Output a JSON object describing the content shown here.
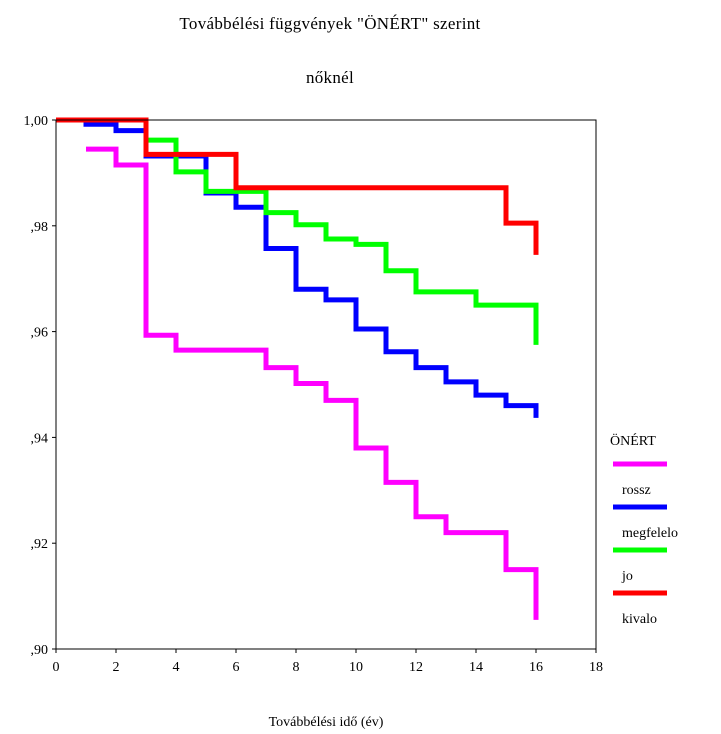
{
  "chart_data": {
    "type": "line",
    "step": true,
    "title": "Továbbélési függvények \"ÖNÉRT\" szerint",
    "subtitle": "nőknél",
    "xlabel": "Továbbélési idő (év)",
    "ylabel": "",
    "xlim": [
      0,
      18
    ],
    "ylim": [
      0.9,
      1.0
    ],
    "xticks": [
      0,
      2,
      4,
      6,
      8,
      10,
      12,
      14,
      16,
      18
    ],
    "xtick_labels": [
      "0",
      "2",
      "4",
      "6",
      "8",
      "10",
      "12",
      "14",
      "16",
      "18"
    ],
    "yticks": [
      0.9,
      0.92,
      0.94,
      0.96,
      0.98,
      1.0
    ],
    "ytick_labels": [
      ",90",
      ",92",
      ",94",
      ",96",
      ",98",
      "1,00"
    ],
    "grid": false,
    "legend": {
      "title": "ÖNÉRT",
      "placement": "right"
    },
    "series": [
      {
        "name": "rossz",
        "color": "#ff00ff",
        "x": [
          1,
          2,
          3,
          4,
          7,
          8,
          9,
          10,
          11,
          12,
          13,
          15,
          16
        ],
        "y": [
          0.9945,
          0.9915,
          0.9593,
          0.9565,
          0.9532,
          0.9502,
          0.947,
          0.938,
          0.9315,
          0.925,
          0.922,
          0.915,
          0.9055
        ]
      },
      {
        "name": "megfelelo",
        "color": "#0000ff",
        "x": [
          0,
          1,
          2,
          3,
          5,
          6,
          7,
          8,
          9,
          10,
          11,
          12,
          13,
          14,
          15,
          16
        ],
        "y": [
          1.0,
          0.9992,
          0.998,
          0.9932,
          0.9862,
          0.9835,
          0.9757,
          0.968,
          0.966,
          0.9605,
          0.9562,
          0.9532,
          0.9505,
          0.948,
          0.946,
          0.9437
        ]
      },
      {
        "name": "jo",
        "color": "#00ff00",
        "x": [
          0,
          3,
          4,
          5,
          7,
          8,
          9,
          10,
          11,
          12,
          14,
          16
        ],
        "y": [
          1.0,
          0.9962,
          0.9902,
          0.9865,
          0.9825,
          0.9802,
          0.9775,
          0.9765,
          0.9715,
          0.9675,
          0.965,
          0.9575
        ]
      },
      {
        "name": "kivalo",
        "color": "#ff0000",
        "x": [
          0,
          3,
          6,
          15,
          16
        ],
        "y": [
          1.0,
          0.9935,
          0.9872,
          0.9805,
          0.9745
        ]
      }
    ]
  }
}
